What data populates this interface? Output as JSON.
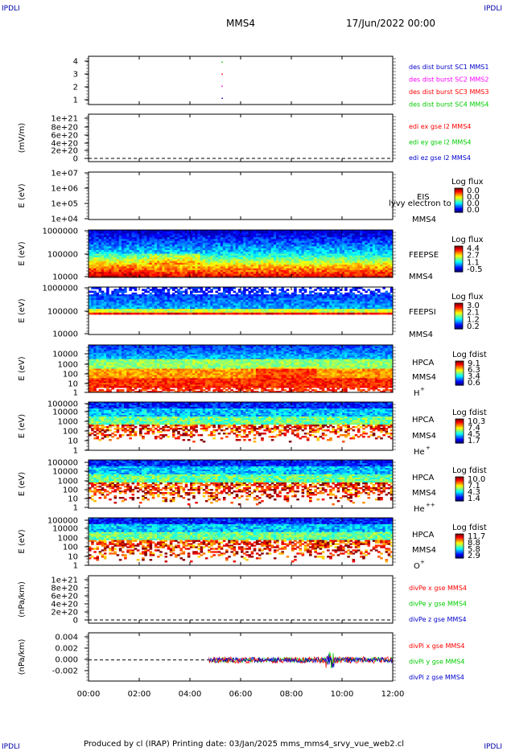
{
  "corners": {
    "tl": "IPDLI",
    "tr": "IPDLI",
    "bl": "IPDLI",
    "br": "IPDLI"
  },
  "header": {
    "spacecraft": "MMS4",
    "date": "17/Jun/2022 00:00"
  },
  "footer": {
    "text": "Produced by cl (IRAP)   Printing date: 03/Jan/2025   mms_mms4_srvy_vue_web2.cl"
  },
  "xaxis": {
    "ticks": [
      "00:00",
      "02:00",
      "04:00",
      "06:00",
      "08:00",
      "10:00",
      "12:00"
    ]
  },
  "colors": {
    "red": "#ff0000",
    "green": "#00cc00",
    "blue": "#0000cc",
    "magenta": "#ff00ff"
  },
  "chart_data": [
    {
      "type": "scatter",
      "id": "des",
      "yticks": [
        "4",
        "3",
        "2",
        "1"
      ],
      "ylim": [
        0.5,
        4.5
      ],
      "points": [
        {
          "x": "05:15",
          "y": 4
        },
        {
          "x": "05:15",
          "y": 3
        },
        {
          "x": "05:15",
          "y": 2
        },
        {
          "x": "05:15",
          "y": 1
        }
      ],
      "legend": [
        {
          "text": "des dist burst SC1 MMS1",
          "color": "#0000cc"
        },
        {
          "text": "des dist burst SC2 MMS2",
          "color": "#ff00ff"
        },
        {
          "text": "des dist burst SC3 MMS3",
          "color": "#ff0000"
        },
        {
          "text": "des dist burst SC4 MMS4",
          "color": "#00cc00"
        }
      ]
    },
    {
      "type": "line",
      "id": "edi",
      "ylabel": "(mV/m)",
      "yticks": [
        "1e+21",
        "8e+20",
        "6e+20",
        "4e+20",
        "2e+20",
        "0"
      ],
      "ylim": [
        0,
        1e+21
      ],
      "legend": [
        {
          "text": "edi ex gse l2 MMS4",
          "color": "#ff0000"
        },
        {
          "text": "edi ey gse l2 MMS4",
          "color": "#00cc00"
        },
        {
          "text": "edi ez gse l2 MMS4",
          "color": "#0000cc"
        }
      ]
    },
    {
      "type": "heatmap",
      "id": "eis",
      "ylabel": "E (eV)",
      "yticks": [
        "1e+07",
        "1e+06",
        "1e+05",
        "1e+04"
      ],
      "labels": [
        "EIS",
        "MMS4"
      ],
      "overlay": "lyvy electron to",
      "cb_title": "Log flux",
      "cb_ticks": [
        "0.0",
        "0.0",
        "0.0",
        "0.0"
      ]
    },
    {
      "type": "heatmap",
      "id": "feepse",
      "ylabel": "E (eV)",
      "yticks": [
        "1000000",
        "100000",
        "10000"
      ],
      "labels": [
        "FEEPSE",
        "MMS4"
      ],
      "cb_title": "Log flux",
      "cb_ticks": [
        "4.4",
        "2.7",
        "1.1",
        "-0.5"
      ]
    },
    {
      "type": "heatmap",
      "id": "feepsi",
      "ylabel": "E (eV)",
      "yticks": [
        "1000000",
        "100000",
        "10000"
      ],
      "labels": [
        "FEEPSI",
        "MMS4"
      ],
      "cb_title": "Log flux",
      "cb_ticks": [
        "3.0",
        "2.1",
        "1.2",
        "0.2"
      ]
    },
    {
      "type": "heatmap",
      "id": "hpca-h",
      "ylabel": "E (eV)",
      "yticks": [
        "10000",
        "1000",
        "100",
        "10",
        "1"
      ],
      "labels": [
        "HPCA",
        "MMS4"
      ],
      "species": "H",
      "charge": "+",
      "cb_title": "Log fdist",
      "cb_ticks": [
        "9.1",
        "6.3",
        "3.4",
        "0.6"
      ]
    },
    {
      "type": "heatmap",
      "id": "hpca-he",
      "ylabel": "E (eV)",
      "yticks": [
        "100000",
        "10000",
        "1000",
        "100",
        "10",
        "1"
      ],
      "labels": [
        "HPCA",
        "MMS4"
      ],
      "species": "He",
      "charge": "+",
      "cb_title": "Log fdist",
      "cb_ticks": [
        "10.3",
        "7.4",
        "4.5",
        "1.7"
      ]
    },
    {
      "type": "heatmap",
      "id": "hpca-hepp",
      "ylabel": "E (eV)",
      "yticks": [
        "100000",
        "10000",
        "1000",
        "100",
        "10",
        "1"
      ],
      "labels": [
        "HPCA",
        "MMS4"
      ],
      "species": "He",
      "charge": "++",
      "cb_title": "Log fdist",
      "cb_ticks": [
        "10.0",
        "7.1",
        "4.3",
        "1.4"
      ]
    },
    {
      "type": "heatmap",
      "id": "hpca-o",
      "ylabel": "E (eV)",
      "yticks": [
        "100000",
        "10000",
        "1000",
        "100",
        "10",
        "1"
      ],
      "labels": [
        "HPCA",
        "MMS4"
      ],
      "species": "O",
      "charge": "+",
      "cb_title": "Log fdist",
      "cb_ticks": [
        "11.7",
        "8.8",
        "5.8",
        "2.9"
      ]
    },
    {
      "type": "line",
      "id": "divpe",
      "ylabel": "(nPa/km)",
      "yticks": [
        "1e+21",
        "8e+20",
        "6e+20",
        "4e+20",
        "2e+20",
        "0"
      ],
      "ylim": [
        0,
        1e+21
      ],
      "legend": [
        {
          "text": "divPe x gse MMS4",
          "color": "#ff0000"
        },
        {
          "text": "divPe y gse MMS4",
          "color": "#00cc00"
        },
        {
          "text": "divPe z gse MMS4",
          "color": "#0000cc"
        }
      ]
    },
    {
      "type": "line",
      "id": "divpi",
      "ylabel": "(nPa/km)",
      "yticks": [
        "0.004",
        "0.002",
        "0.000",
        "-0.002"
      ],
      "ylim": [
        -0.0035,
        0.0045
      ],
      "data_start": "04:45",
      "data_end": "12:00",
      "legend": [
        {
          "text": "divPi x gse MMS4",
          "color": "#ff0000"
        },
        {
          "text": "divPi y gse MMS4",
          "color": "#00cc00"
        },
        {
          "text": "divPi z gse MMS4",
          "color": "#0000cc"
        }
      ]
    }
  ]
}
